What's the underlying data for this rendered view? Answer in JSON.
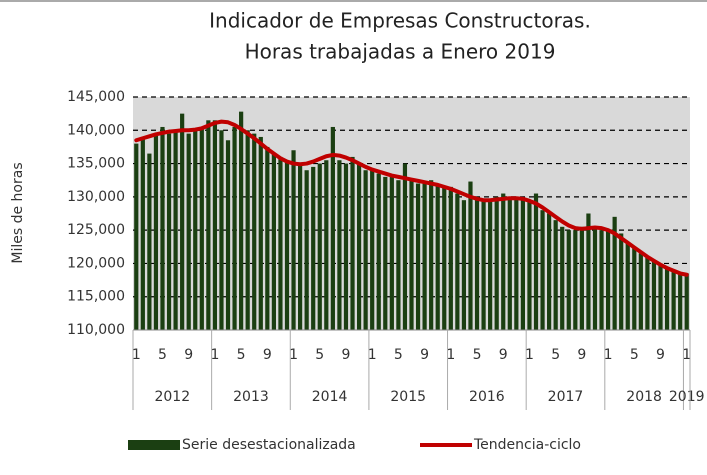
{
  "chart_data": {
    "type": "bar-line",
    "title": "Indicador de Empresas Constructoras.",
    "subtitle": "Horas trabajadas a Enero 2019",
    "y_label": "Miles de horas",
    "categories": [
      "1",
      null,
      null,
      null,
      "5",
      null,
      null,
      null,
      "9",
      null,
      null,
      null,
      "1",
      null,
      null,
      null,
      "5",
      null,
      null,
      null,
      "9",
      null,
      null,
      null,
      "1",
      null,
      null,
      null,
      "5",
      null,
      null,
      null,
      "9",
      null,
      null,
      null,
      "1",
      null,
      null,
      null,
      "5",
      null,
      null,
      null,
      "9",
      null,
      null,
      null,
      "1",
      null,
      null,
      null,
      "5",
      null,
      null,
      null,
      "9",
      null,
      null,
      null,
      "1",
      null,
      null,
      null,
      "5",
      null,
      null,
      null,
      "9",
      null,
      null,
      null,
      "1",
      null,
      null,
      null,
      "5",
      null,
      null,
      null,
      "9",
      null,
      null,
      null,
      "1"
    ],
    "years": [
      "2012",
      "2013",
      "2014",
      "2015",
      "2016",
      "2017",
      "2018",
      "2019"
    ],
    "ylim": [
      110000,
      145000
    ],
    "yticks": [
      {
        "value": 110000,
        "label": "110,000"
      },
      {
        "value": 115000,
        "label": "115,000"
      },
      {
        "value": 120000,
        "label": "120,000"
      },
      {
        "value": 125000,
        "label": "125,000"
      },
      {
        "value": 130000,
        "label": "130,000"
      },
      {
        "value": 135000,
        "label": "135,000"
      },
      {
        "value": 140000,
        "label": "140,000"
      },
      {
        "value": 145000,
        "label": "145,000"
      }
    ],
    "grid": true,
    "series": [
      {
        "name": "Serie desestacionalizada",
        "type": "bar",
        "color": "#1b3f12",
        "values": [
          138000,
          139000,
          136500,
          139500,
          140500,
          139500,
          139800,
          142500,
          139500,
          140000,
          140500,
          141500,
          141500,
          140000,
          138500,
          140500,
          142800,
          140000,
          139500,
          139000,
          137500,
          136500,
          136000,
          135500,
          137000,
          135000,
          134000,
          134500,
          135000,
          135500,
          140500,
          135500,
          135000,
          136000,
          135000,
          134000,
          134000,
          133500,
          133000,
          133000,
          132500,
          135000,
          132500,
          132000,
          132000,
          132500,
          132000,
          131500,
          131500,
          130500,
          129500,
          132300,
          130000,
          129500,
          129500,
          130000,
          130500,
          130000,
          130000,
          129500,
          129500,
          130500,
          128000,
          127500,
          126500,
          125500,
          125000,
          125000,
          125500,
          127500,
          125500,
          125000,
          125000,
          127000,
          124500,
          123000,
          122500,
          121500,
          121000,
          120500,
          120000,
          119500,
          119000,
          118500,
          118500
        ]
      },
      {
        "name": "Tendencia-ciclo",
        "type": "line",
        "color": "#c00000",
        "values": [
          138500,
          138800,
          139100,
          139400,
          139600,
          139800,
          139900,
          140000,
          140000,
          140100,
          140300,
          140700,
          141100,
          141300,
          141200,
          140800,
          140200,
          139500,
          138800,
          138000,
          137200,
          136500,
          135800,
          135300,
          135000,
          134900,
          135000,
          135300,
          135700,
          136100,
          136300,
          136200,
          135900,
          135500,
          135000,
          134500,
          134100,
          133800,
          133500,
          133200,
          133000,
          132800,
          132600,
          132400,
          132200,
          132000,
          131800,
          131500,
          131200,
          130800,
          130400,
          130000,
          129700,
          129500,
          129500,
          129600,
          129700,
          129800,
          129800,
          129700,
          129400,
          129000,
          128400,
          127700,
          127000,
          126300,
          125700,
          125300,
          125200,
          125300,
          125400,
          125300,
          125000,
          124500,
          123800,
          123100,
          122400,
          121700,
          121000,
          120400,
          119800,
          119300,
          118900,
          118500,
          118300
        ]
      }
    ]
  }
}
